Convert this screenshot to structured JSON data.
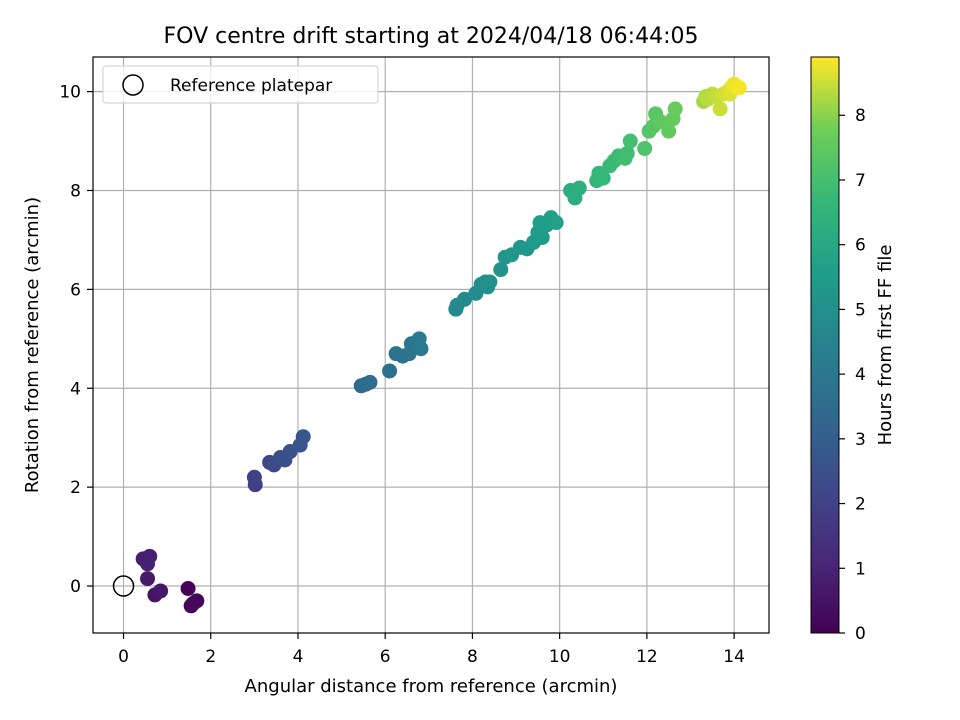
{
  "chart_data": {
    "type": "scatter",
    "title": "FOV centre drift starting at 2024/04/18 06:44:05",
    "xlabel": "Angular distance from reference (arcmin)",
    "ylabel": "Rotation from reference (arcmin)",
    "xlim": [
      -0.7,
      14.8
    ],
    "ylim": [
      -0.95,
      10.7
    ],
    "xticks": [
      0,
      2,
      4,
      6,
      8,
      10,
      12,
      14
    ],
    "yticks": [
      0,
      2,
      4,
      6,
      8,
      10
    ],
    "grid": true,
    "legend": {
      "position": "top-left",
      "entries": [
        "Reference platepar"
      ]
    },
    "reference_point": {
      "x": 0,
      "y": 0,
      "label": "Reference platepar",
      "marker": "open-circle"
    },
    "colorbar": {
      "label": "Hours from first FF file",
      "range": [
        0,
        8.9
      ],
      "ticks": [
        0,
        1,
        2,
        3,
        4,
        5,
        6,
        7,
        8
      ],
      "colormap": "viridis"
    },
    "series": [
      {
        "points": [
          [
            1.48,
            -0.05,
            0.05
          ],
          [
            1.55,
            -0.4,
            0.1
          ],
          [
            1.68,
            -0.3,
            0.15
          ],
          [
            1.6,
            -0.35,
            0.2
          ],
          [
            0.72,
            -0.18,
            0.55
          ],
          [
            0.85,
            -0.1,
            0.65
          ],
          [
            0.55,
            0.15,
            0.75
          ],
          [
            0.45,
            0.55,
            0.8
          ],
          [
            0.6,
            0.6,
            0.85
          ],
          [
            0.55,
            0.45,
            0.9
          ],
          [
            3.02,
            2.05,
            1.9
          ],
          [
            3.0,
            2.2,
            2.0
          ],
          [
            3.35,
            2.5,
            2.2
          ],
          [
            3.45,
            2.45,
            2.3
          ],
          [
            3.6,
            2.6,
            2.4
          ],
          [
            3.7,
            2.55,
            2.45
          ],
          [
            3.82,
            2.72,
            2.55
          ],
          [
            4.05,
            2.85,
            2.6
          ],
          [
            4.12,
            3.02,
            2.65
          ],
          [
            5.45,
            4.05,
            3.4
          ],
          [
            5.55,
            4.08,
            3.45
          ],
          [
            5.65,
            4.12,
            3.5
          ],
          [
            6.1,
            4.35,
            3.7
          ],
          [
            6.25,
            4.7,
            3.8
          ],
          [
            6.4,
            4.65,
            3.85
          ],
          [
            6.55,
            4.7,
            3.9
          ],
          [
            6.6,
            4.9,
            3.95
          ],
          [
            6.7,
            4.85,
            4.0
          ],
          [
            6.78,
            5.0,
            4.05
          ],
          [
            6.82,
            4.8,
            4.1
          ],
          [
            7.62,
            5.6,
            4.7
          ],
          [
            7.65,
            5.68,
            4.75
          ],
          [
            7.82,
            5.8,
            4.8
          ],
          [
            8.08,
            5.92,
            4.85
          ],
          [
            8.2,
            6.1,
            4.9
          ],
          [
            8.3,
            6.15,
            4.95
          ],
          [
            8.4,
            6.15,
            5.0
          ],
          [
            8.35,
            6.05,
            5.05
          ],
          [
            8.65,
            6.4,
            5.1
          ],
          [
            8.75,
            6.65,
            5.2
          ],
          [
            8.9,
            6.7,
            5.25
          ],
          [
            9.1,
            6.85,
            5.3
          ],
          [
            9.25,
            6.82,
            5.35
          ],
          [
            9.4,
            6.95,
            5.4
          ],
          [
            9.5,
            7.15,
            5.45
          ],
          [
            9.6,
            7.05,
            5.5
          ],
          [
            9.55,
            7.35,
            5.55
          ],
          [
            9.7,
            7.3,
            5.6
          ],
          [
            9.8,
            7.45,
            5.65
          ],
          [
            9.92,
            7.35,
            5.7
          ],
          [
            10.25,
            8.0,
            6.2
          ],
          [
            10.35,
            7.85,
            6.25
          ],
          [
            10.45,
            8.05,
            6.3
          ],
          [
            10.85,
            8.2,
            6.6
          ],
          [
            10.9,
            8.35,
            6.65
          ],
          [
            11.0,
            8.25,
            6.7
          ],
          [
            11.15,
            8.5,
            6.75
          ],
          [
            11.25,
            8.6,
            6.8
          ],
          [
            11.35,
            8.7,
            6.85
          ],
          [
            11.55,
            8.75,
            6.9
          ],
          [
            11.5,
            8.65,
            6.95
          ],
          [
            11.62,
            9.0,
            7.0
          ],
          [
            11.95,
            8.85,
            7.2
          ],
          [
            12.05,
            9.2,
            7.3
          ],
          [
            12.15,
            9.3,
            7.35
          ],
          [
            12.2,
            9.55,
            7.4
          ],
          [
            12.3,
            9.4,
            7.45
          ],
          [
            12.45,
            9.35,
            7.5
          ],
          [
            12.5,
            9.2,
            7.55
          ],
          [
            12.6,
            9.45,
            7.6
          ],
          [
            12.65,
            9.65,
            7.65
          ],
          [
            13.3,
            9.8,
            8.2
          ],
          [
            13.35,
            9.9,
            8.3
          ],
          [
            13.4,
            9.85,
            8.35
          ],
          [
            13.5,
            9.95,
            8.4
          ],
          [
            13.6,
            9.9,
            8.45
          ],
          [
            13.68,
            9.65,
            8.5
          ],
          [
            13.75,
            9.95,
            8.55
          ],
          [
            13.85,
            10.0,
            8.6
          ],
          [
            13.9,
            9.95,
            8.65
          ],
          [
            13.95,
            10.1,
            8.7
          ],
          [
            14.0,
            10.15,
            8.75
          ],
          [
            14.05,
            10.1,
            8.8
          ],
          [
            14.12,
            10.08,
            8.85
          ]
        ]
      }
    ]
  }
}
